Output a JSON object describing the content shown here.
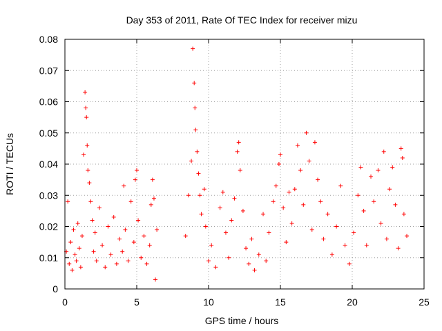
{
  "chart_data": {
    "type": "scatter",
    "title": "Day 353 of 2011, Rate Of TEC Index for receiver mizu",
    "xlabel": "GPS time / hours",
    "ylabel": "ROTI / TECUs",
    "xlim": [
      0,
      25
    ],
    "ylim": [
      0,
      0.08
    ],
    "xticks": [
      0,
      5,
      10,
      15,
      20,
      25
    ],
    "xtick_labels": [
      "0",
      "5",
      "10",
      "15",
      "20",
      "25"
    ],
    "yticks": [
      0,
      0.01,
      0.02,
      0.03,
      0.04,
      0.05,
      0.06,
      0.07,
      0.08
    ],
    "ytick_labels": [
      "0",
      "0.01",
      "0.02",
      "0.03",
      "0.04",
      "0.05",
      "0.06",
      "0.07",
      "0.08"
    ],
    "grid": true,
    "marker": "+",
    "color": "#ff0000",
    "series": [
      {
        "name": "ROTI",
        "points": [
          [
            0.1,
            0.012
          ],
          [
            0.2,
            0.028
          ],
          [
            0.3,
            0.008
          ],
          [
            0.4,
            0.015
          ],
          [
            0.5,
            0.006
          ],
          [
            0.6,
            0.019
          ],
          [
            0.7,
            0.011
          ],
          [
            0.8,
            0.009
          ],
          [
            0.9,
            0.021
          ],
          [
            1.0,
            0.013
          ],
          [
            1.1,
            0.007
          ],
          [
            1.2,
            0.017
          ],
          [
            1.3,
            0.043
          ],
          [
            1.4,
            0.063
          ],
          [
            1.45,
            0.058
          ],
          [
            1.5,
            0.055
          ],
          [
            1.55,
            0.046
          ],
          [
            1.6,
            0.038
          ],
          [
            1.7,
            0.034
          ],
          [
            1.8,
            0.028
          ],
          [
            1.9,
            0.022
          ],
          [
            2.0,
            0.012
          ],
          [
            2.1,
            0.018
          ],
          [
            2.2,
            0.009
          ],
          [
            2.4,
            0.026
          ],
          [
            2.6,
            0.014
          ],
          [
            2.8,
            0.007
          ],
          [
            3.0,
            0.02
          ],
          [
            3.2,
            0.011
          ],
          [
            3.4,
            0.023
          ],
          [
            3.6,
            0.008
          ],
          [
            3.8,
            0.016
          ],
          [
            4.0,
            0.012
          ],
          [
            4.1,
            0.033
          ],
          [
            4.2,
            0.019
          ],
          [
            4.4,
            0.009
          ],
          [
            4.6,
            0.028
          ],
          [
            4.8,
            0.015
          ],
          [
            4.9,
            0.035
          ],
          [
            5.0,
            0.038
          ],
          [
            5.1,
            0.022
          ],
          [
            5.3,
            0.01
          ],
          [
            5.5,
            0.017
          ],
          [
            5.7,
            0.008
          ],
          [
            5.9,
            0.014
          ],
          [
            6.0,
            0.027
          ],
          [
            6.1,
            0.035
          ],
          [
            6.2,
            0.029
          ],
          [
            6.3,
            0.003
          ],
          [
            6.4,
            0.019
          ],
          [
            8.4,
            0.017
          ],
          [
            8.6,
            0.03
          ],
          [
            8.8,
            0.041
          ],
          [
            8.9,
            0.077
          ],
          [
            9.0,
            0.066
          ],
          [
            9.05,
            0.058
          ],
          [
            9.1,
            0.051
          ],
          [
            9.2,
            0.044
          ],
          [
            9.3,
            0.037
          ],
          [
            9.4,
            0.03
          ],
          [
            9.5,
            0.024
          ],
          [
            9.7,
            0.032
          ],
          [
            9.8,
            0.02
          ],
          [
            10.0,
            0.009
          ],
          [
            10.2,
            0.014
          ],
          [
            10.5,
            0.007
          ],
          [
            10.8,
            0.026
          ],
          [
            11.0,
            0.031
          ],
          [
            11.2,
            0.018
          ],
          [
            11.4,
            0.01
          ],
          [
            11.6,
            0.022
          ],
          [
            11.8,
            0.029
          ],
          [
            12.0,
            0.044
          ],
          [
            12.1,
            0.047
          ],
          [
            12.2,
            0.038
          ],
          [
            12.4,
            0.025
          ],
          [
            12.6,
            0.013
          ],
          [
            12.8,
            0.008
          ],
          [
            13.0,
            0.016
          ],
          [
            13.2,
            0.006
          ],
          [
            13.5,
            0.011
          ],
          [
            13.8,
            0.024
          ],
          [
            14.0,
            0.009
          ],
          [
            14.2,
            0.018
          ],
          [
            14.5,
            0.028
          ],
          [
            14.7,
            0.033
          ],
          [
            14.9,
            0.04
          ],
          [
            15.0,
            0.043
          ],
          [
            15.2,
            0.026
          ],
          [
            15.4,
            0.015
          ],
          [
            15.6,
            0.031
          ],
          [
            15.8,
            0.021
          ],
          [
            16.0,
            0.032
          ],
          [
            16.2,
            0.046
          ],
          [
            16.4,
            0.038
          ],
          [
            16.6,
            0.027
          ],
          [
            16.8,
            0.05
          ],
          [
            17.0,
            0.041
          ],
          [
            17.2,
            0.019
          ],
          [
            17.4,
            0.047
          ],
          [
            17.6,
            0.035
          ],
          [
            17.8,
            0.028
          ],
          [
            18.0,
            0.016
          ],
          [
            18.3,
            0.024
          ],
          [
            18.6,
            0.011
          ],
          [
            18.9,
            0.02
          ],
          [
            19.2,
            0.033
          ],
          [
            19.5,
            0.014
          ],
          [
            19.8,
            0.008
          ],
          [
            20.1,
            0.018
          ],
          [
            20.4,
            0.03
          ],
          [
            20.6,
            0.039
          ],
          [
            20.8,
            0.025
          ],
          [
            21.0,
            0.014
          ],
          [
            21.3,
            0.036
          ],
          [
            21.5,
            0.028
          ],
          [
            21.8,
            0.038
          ],
          [
            22.0,
            0.021
          ],
          [
            22.2,
            0.044
          ],
          [
            22.4,
            0.016
          ],
          [
            22.6,
            0.032
          ],
          [
            22.8,
            0.039
          ],
          [
            23.0,
            0.027
          ],
          [
            23.2,
            0.013
          ],
          [
            23.4,
            0.045
          ],
          [
            23.5,
            0.042
          ],
          [
            23.6,
            0.024
          ],
          [
            23.8,
            0.017
          ]
        ]
      }
    ]
  }
}
